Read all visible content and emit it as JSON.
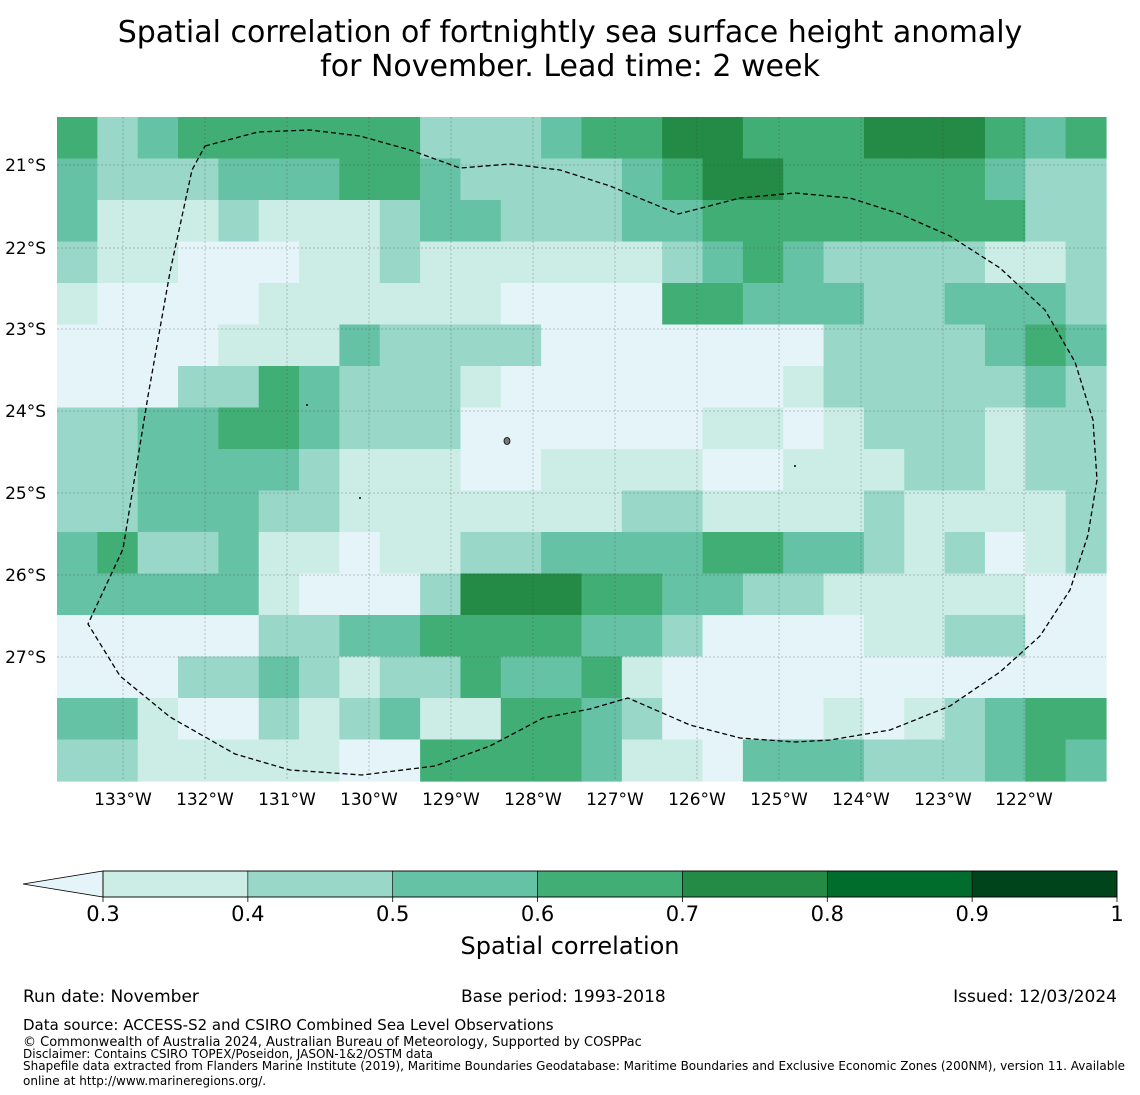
{
  "title": {
    "line1": "Spatial correlation of fortnightly sea surface height anomaly",
    "line2": "for November. Lead time: 2 week"
  },
  "chart_data": {
    "type": "heatmap",
    "title": "Spatial correlation of fortnightly sea surface height anomaly for November. Lead time: 2 week",
    "x_ticks": [
      "133°W",
      "132°W",
      "131°W",
      "130°W",
      "129°W",
      "128°W",
      "127°W",
      "126°W",
      "125°W",
      "124°W",
      "123°W",
      "122°W"
    ],
    "y_ticks": [
      "21°S",
      "22°S",
      "23°S",
      "24°S",
      "25°S",
      "26°S",
      "27°S"
    ],
    "x_range_deg_west": [
      133.8,
      121.0
    ],
    "y_range_deg_south": [
      20.6,
      28.7
    ],
    "grid": true,
    "colorbar": {
      "label": "Spatial correlation",
      "ticks": [
        "0.3",
        "0.4",
        "0.5",
        "0.6",
        "0.7",
        "0.8",
        "0.9",
        "1"
      ],
      "bins": [
        0.3,
        0.4,
        0.5,
        0.6,
        0.7,
        0.8,
        0.9,
        1.0
      ],
      "extend": "min",
      "colors": [
        "#e5f4f9",
        "#ccece6",
        "#99d8c9",
        "#66c2a4",
        "#41ae76",
        "#238b45",
        "#006d2c",
        "#00441b"
      ]
    },
    "grid_cols": 26,
    "grid_rows": 16,
    "class_legend": "0 = below 0.3, 1 = 0.3-0.4, 2 = 0.4-0.5, 3 = 0.5-0.6, 4 = 0.6-0.7, 5 = 0.7-0.8",
    "cells": [
      "33443334445555442",
      "23444432333333333",
      "000000112",
      "2001000",
      "0000000",
      "12223334"
    ],
    "cells_grid": [
      "42344444422234455444555434",
      "32223334432222345544444322",
      "31112111233222334444444422",
      "21100011211111123432222112",
      "10000111111000044333223332",
      "00001113222200000002222343",
      "00022432221000000012222232",
      "22334432220000001101222122",
      "22333321110011110011122122",
      "22333221111111221111211112",
      "34223110112233334433212012",
      "33333100025554433221111100",
      "00000223344443320000112200",
      "00022321224334100000000000",
      "33100212311443200001012344",
      "22111110044443110333222343"
    ],
    "boundary": "Exclusive Economic Zone (200NM) outline, dashed",
    "islands": "small land features near 130.9°W 24°S, 128.3°W 24.4°S, 124.8°W 24.7°S, 130°W 25.1°S"
  },
  "footer": {
    "run_date": "Run date: November",
    "base_period": "Base period: 1993-2018",
    "issued": "Issued: 12/03/2024",
    "data_source": "Data source: ACCESS-S2 and CSIRO Combined Sea Level Observations",
    "copyright": "© Commonwealth of Australia 2024, Australian Bureau of Meteorology, Supported by COSPPac",
    "disclaimer": "Disclaimer: Contains CSIRO TOPEX/Poseidon, JASON-1&2/OSTM data",
    "shapefile1": "Shapefile data extracted from Flanders Marine Institute (2019), Maritime Boundaries Geodatabase: Maritime Boundaries and Exclusive Economic Zones (200NM), version 11. Available",
    "shapefile2": "online at http://www.marineregions.org/."
  }
}
